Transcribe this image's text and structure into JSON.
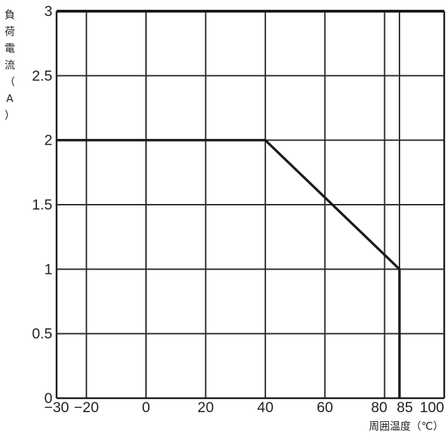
{
  "chart_data": {
    "type": "line",
    "ylabel": "負荷電流（A）",
    "xlabel": "周囲温度（℃）",
    "xlim": [
      -30,
      100
    ],
    "ylim": [
      0,
      3
    ],
    "x_ticks": [
      -30,
      -20,
      0,
      20,
      40,
      60,
      80,
      85,
      100
    ],
    "x_tick_labels": [
      "−30",
      "−20",
      "0",
      "20",
      "40",
      "60",
      "80",
      "85",
      "100"
    ],
    "y_ticks": [
      0,
      0.5,
      1,
      1.5,
      2,
      2.5,
      3
    ],
    "y_tick_labels": [
      "0",
      "0.5",
      "1",
      "1.5",
      "2",
      "2.5",
      "3"
    ],
    "grid": true,
    "series": [
      {
        "x": [
          -30,
          40,
          85,
          85
        ],
        "y": [
          2,
          2,
          1,
          0
        ]
      }
    ]
  }
}
